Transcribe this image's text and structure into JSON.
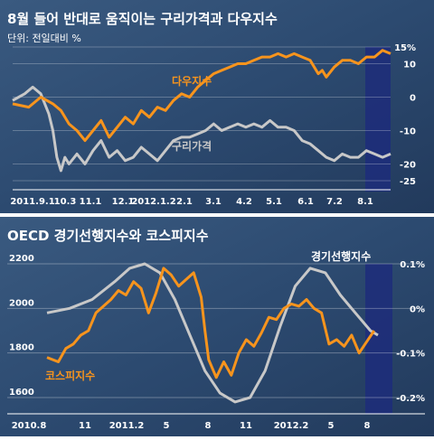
{
  "chart_data": [
    {
      "type": "line",
      "title": "8월 들어 반대로 움직이는 구리가격과 다우지수",
      "subtitle": "단위: 전일대비 %",
      "x_tick_labels": [
        "2011.9.1",
        "10.3",
        "11.1",
        "12.1",
        "2012.1.2",
        "2.1",
        "3.1",
        "4.2",
        "5.1",
        "6.1",
        "7.2",
        "8.1"
      ],
      "y_tick_labels": [
        "15%",
        "10",
        "0",
        "-10",
        "-20",
        "-25"
      ],
      "ylim": [
        -25,
        15
      ],
      "series": [
        {
          "name": "다우지수",
          "color": "#f7941d",
          "points": [
            [
              0,
              -2
            ],
            [
              4,
              -3
            ],
            [
              7,
              0
            ],
            [
              10,
              -2
            ],
            [
              12,
              -4
            ],
            [
              14,
              -8
            ],
            [
              16,
              -10
            ],
            [
              18,
              -13
            ],
            [
              20,
              -10
            ],
            [
              22,
              -7
            ],
            [
              24,
              -12
            ],
            [
              26,
              -9
            ],
            [
              28,
              -6
            ],
            [
              30,
              -8
            ],
            [
              32,
              -4
            ],
            [
              34,
              -6
            ],
            [
              36,
              -3
            ],
            [
              38,
              -4
            ],
            [
              40,
              -1
            ],
            [
              42,
              1
            ],
            [
              44,
              0
            ],
            [
              46,
              3
            ],
            [
              48,
              5
            ],
            [
              50,
              7
            ],
            [
              52,
              8
            ],
            [
              54,
              9
            ],
            [
              56,
              10
            ],
            [
              58,
              10
            ],
            [
              60,
              11
            ],
            [
              62,
              12
            ],
            [
              64,
              12
            ],
            [
              66,
              13
            ],
            [
              68,
              12
            ],
            [
              70,
              13
            ],
            [
              72,
              12
            ],
            [
              74,
              11
            ],
            [
              75,
              9
            ],
            [
              76,
              7
            ],
            [
              77,
              8
            ],
            [
              78,
              6
            ],
            [
              80,
              9
            ],
            [
              82,
              11
            ],
            [
              84,
              11
            ],
            [
              86,
              10
            ],
            [
              88,
              12
            ],
            [
              90,
              12
            ],
            [
              92,
              14
            ],
            [
              94,
              13
            ]
          ]
        },
        {
          "name": "구리가격",
          "color": "#c8c8c8",
          "points": [
            [
              0,
              -1
            ],
            [
              3,
              1
            ],
            [
              5,
              3
            ],
            [
              7,
              1
            ],
            [
              9,
              -5
            ],
            [
              10,
              -10
            ],
            [
              11,
              -18
            ],
            [
              12,
              -22
            ],
            [
              13,
              -18
            ],
            [
              14,
              -20
            ],
            [
              16,
              -17
            ],
            [
              18,
              -20
            ],
            [
              20,
              -16
            ],
            [
              22,
              -13
            ],
            [
              24,
              -18
            ],
            [
              26,
              -16
            ],
            [
              28,
              -19
            ],
            [
              30,
              -18
            ],
            [
              32,
              -15
            ],
            [
              34,
              -17
            ],
            [
              36,
              -19
            ],
            [
              38,
              -16
            ],
            [
              40,
              -13
            ],
            [
              42,
              -12
            ],
            [
              44,
              -12
            ],
            [
              46,
              -11
            ],
            [
              48,
              -10
            ],
            [
              50,
              -8
            ],
            [
              52,
              -10
            ],
            [
              54,
              -9
            ],
            [
              56,
              -8
            ],
            [
              58,
              -9
            ],
            [
              60,
              -8
            ],
            [
              62,
              -9
            ],
            [
              64,
              -7
            ],
            [
              66,
              -9
            ],
            [
              68,
              -9
            ],
            [
              70,
              -10
            ],
            [
              72,
              -13
            ],
            [
              74,
              -14
            ],
            [
              76,
              -16
            ],
            [
              78,
              -18
            ],
            [
              80,
              -19
            ],
            [
              82,
              -17
            ],
            [
              84,
              -18
            ],
            [
              86,
              -18
            ],
            [
              88,
              -16
            ],
            [
              90,
              -17
            ],
            [
              92,
              -18
            ],
            [
              94,
              -17
            ]
          ]
        }
      ]
    },
    {
      "type": "line",
      "title": "OECD 경기선행지수와 코스피지수",
      "x_tick_labels": [
        "2010.8",
        "11",
        "2011.2",
        "5",
        "8",
        "11",
        "2012.2",
        "5",
        "8"
      ],
      "y_left_tick_labels": [
        "2200",
        "2000",
        "1800",
        "1600"
      ],
      "y_right_tick_labels": [
        "0.1%",
        "0%",
        "-0.1%",
        "-0.2%"
      ],
      "ylim_left": [
        1600,
        2200
      ],
      "ylim_right": [
        -0.2,
        0.1
      ],
      "series": [
        {
          "name": "코스피지수",
          "axis": "left",
          "color": "#f7941d",
          "points": [
            [
              0,
              1780
            ],
            [
              3,
              1760
            ],
            [
              5,
              1820
            ],
            [
              7,
              1840
            ],
            [
              9,
              1880
            ],
            [
              11,
              1900
            ],
            [
              13,
              1980
            ],
            [
              15,
              2010
            ],
            [
              17,
              2040
            ],
            [
              19,
              2080
            ],
            [
              21,
              2060
            ],
            [
              23,
              2120
            ],
            [
              25,
              2090
            ],
            [
              27,
              1980
            ],
            [
              29,
              2070
            ],
            [
              31,
              2180
            ],
            [
              33,
              2150
            ],
            [
              35,
              2100
            ],
            [
              37,
              2130
            ],
            [
              39,
              2160
            ],
            [
              41,
              2050
            ],
            [
              42,
              1900
            ],
            [
              43,
              1770
            ],
            [
              45,
              1690
            ],
            [
              47,
              1760
            ],
            [
              49,
              1700
            ],
            [
              51,
              1800
            ],
            [
              53,
              1860
            ],
            [
              55,
              1830
            ],
            [
              57,
              1890
            ],
            [
              59,
              1960
            ],
            [
              61,
              1950
            ],
            [
              63,
              2000
            ],
            [
              65,
              2020
            ],
            [
              67,
              2010
            ],
            [
              69,
              2040
            ],
            [
              71,
              2000
            ],
            [
              73,
              1980
            ],
            [
              75,
              1840
            ],
            [
              77,
              1860
            ],
            [
              79,
              1830
            ],
            [
              81,
              1880
            ],
            [
              83,
              1800
            ],
            [
              85,
              1850
            ],
            [
              87,
              1900
            ]
          ]
        },
        {
          "name": "경기선행지수",
          "axis": "right",
          "color": "#c8c8c8",
          "points": [
            [
              0,
              -0.01
            ],
            [
              6,
              0.0
            ],
            [
              12,
              0.02
            ],
            [
              18,
              0.06
            ],
            [
              22,
              0.09
            ],
            [
              26,
              0.1
            ],
            [
              30,
              0.08
            ],
            [
              34,
              0.02
            ],
            [
              38,
              -0.06
            ],
            [
              42,
              -0.14
            ],
            [
              46,
              -0.19
            ],
            [
              50,
              -0.21
            ],
            [
              54,
              -0.2
            ],
            [
              58,
              -0.14
            ],
            [
              62,
              -0.04
            ],
            [
              66,
              0.05
            ],
            [
              70,
              0.09
            ],
            [
              74,
              0.08
            ],
            [
              78,
              0.03
            ],
            [
              82,
              -0.01
            ],
            [
              86,
              -0.05
            ],
            [
              88,
              -0.06
            ]
          ]
        }
      ]
    }
  ]
}
